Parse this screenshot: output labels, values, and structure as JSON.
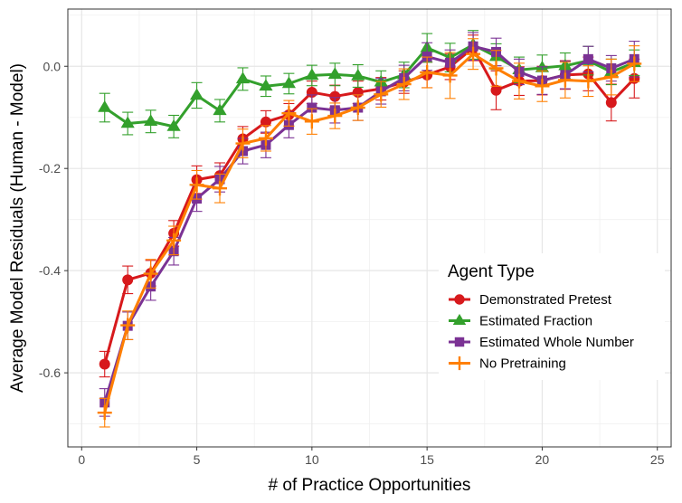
{
  "chart_data": {
    "type": "line",
    "title": "",
    "xlabel": "# of Practice Opportunities",
    "ylabel": "Average Model Residuals (Human - Model)",
    "xlim": [
      -0.6,
      25.6
    ],
    "ylim": [
      -0.745,
      0.112
    ],
    "x_ticks": [
      0,
      5,
      10,
      15,
      20,
      25
    ],
    "x_tick_labels": [
      "0",
      "5",
      "10",
      "15",
      "20",
      "25"
    ],
    "y_ticks": [
      -0.6,
      -0.4,
      -0.2,
      0.0
    ],
    "y_tick_labels": [
      "-0.6",
      "-0.4",
      "-0.2",
      "0.0"
    ],
    "grid": true,
    "legend": {
      "title": "Agent Type",
      "position": "right-inside"
    },
    "x": [
      1,
      2,
      3,
      4,
      5,
      6,
      7,
      8,
      9,
      10,
      11,
      12,
      13,
      14,
      15,
      16,
      17,
      18,
      19,
      20,
      21,
      22,
      23,
      24
    ],
    "series": [
      {
        "name": "Demonstrated Pretest",
        "color": "#d7191c",
        "marker": "circle",
        "values": [
          -0.583,
          -0.418,
          -0.405,
          -0.327,
          -0.222,
          -0.214,
          -0.142,
          -0.109,
          -0.095,
          -0.051,
          -0.059,
          -0.051,
          -0.044,
          -0.031,
          -0.017,
          -0.001,
          0.036,
          -0.047,
          -0.029,
          -0.028,
          -0.017,
          -0.015,
          -0.071,
          -0.024
        ],
        "errors": [
          0.025,
          0.027,
          0.025,
          0.025,
          0.027,
          0.025,
          0.024,
          0.022,
          0.022,
          0.022,
          0.022,
          0.022,
          0.022,
          0.022,
          0.025,
          0.025,
          0.025,
          0.038,
          0.028,
          0.028,
          0.028,
          0.033,
          0.036,
          0.038
        ]
      },
      {
        "name": "Estimated Fraction",
        "color": "#33a02c",
        "marker": "triangle",
        "values": [
          -0.081,
          -0.112,
          -0.108,
          -0.118,
          -0.057,
          -0.087,
          -0.025,
          -0.039,
          -0.034,
          -0.018,
          -0.016,
          -0.019,
          -0.031,
          -0.017,
          0.036,
          0.017,
          0.042,
          0.019,
          -0.007,
          -0.003,
          0.001,
          0.011,
          -0.011,
          0.007
        ],
        "errors": [
          0.028,
          0.022,
          0.022,
          0.022,
          0.025,
          0.022,
          0.022,
          0.02,
          0.02,
          0.02,
          0.022,
          0.022,
          0.022,
          0.025,
          0.028,
          0.028,
          0.028,
          0.025,
          0.025,
          0.025,
          0.025,
          0.028,
          0.025,
          0.025
        ]
      },
      {
        "name": "Estimated Whole Number",
        "color": "#7b3294",
        "marker": "square",
        "values": [
          -0.658,
          -0.508,
          -0.431,
          -0.362,
          -0.259,
          -0.221,
          -0.166,
          -0.154,
          -0.115,
          -0.081,
          -0.086,
          -0.081,
          -0.049,
          -0.023,
          0.019,
          0.007,
          0.039,
          0.028,
          -0.011,
          -0.028,
          -0.017,
          0.014,
          -0.004,
          0.014
        ],
        "errors": [
          0.027,
          0.027,
          0.027,
          0.027,
          0.025,
          0.025,
          0.025,
          0.025,
          0.025,
          0.025,
          0.025,
          0.025,
          0.025,
          0.025,
          0.027,
          0.025,
          0.027,
          0.027,
          0.025,
          0.027,
          0.027,
          0.025,
          0.025,
          0.035
        ]
      },
      {
        "name": "No Pretraining",
        "color": "#ff7f00",
        "marker": "plus",
        "values": [
          -0.678,
          -0.507,
          -0.406,
          -0.341,
          -0.232,
          -0.239,
          -0.151,
          -0.141,
          -0.092,
          -0.108,
          -0.097,
          -0.081,
          -0.055,
          -0.035,
          -0.012,
          -0.018,
          0.024,
          -0.004,
          -0.029,
          -0.039,
          -0.027,
          -0.029,
          -0.021,
          0.005
        ],
        "errors": [
          0.028,
          0.028,
          0.028,
          0.028,
          0.028,
          0.028,
          0.028,
          0.025,
          0.025,
          0.025,
          0.025,
          0.025,
          0.025,
          0.03,
          0.03,
          0.045,
          0.03,
          0.035,
          0.035,
          0.03,
          0.035,
          0.03,
          0.035,
          0.035
        ]
      }
    ]
  }
}
